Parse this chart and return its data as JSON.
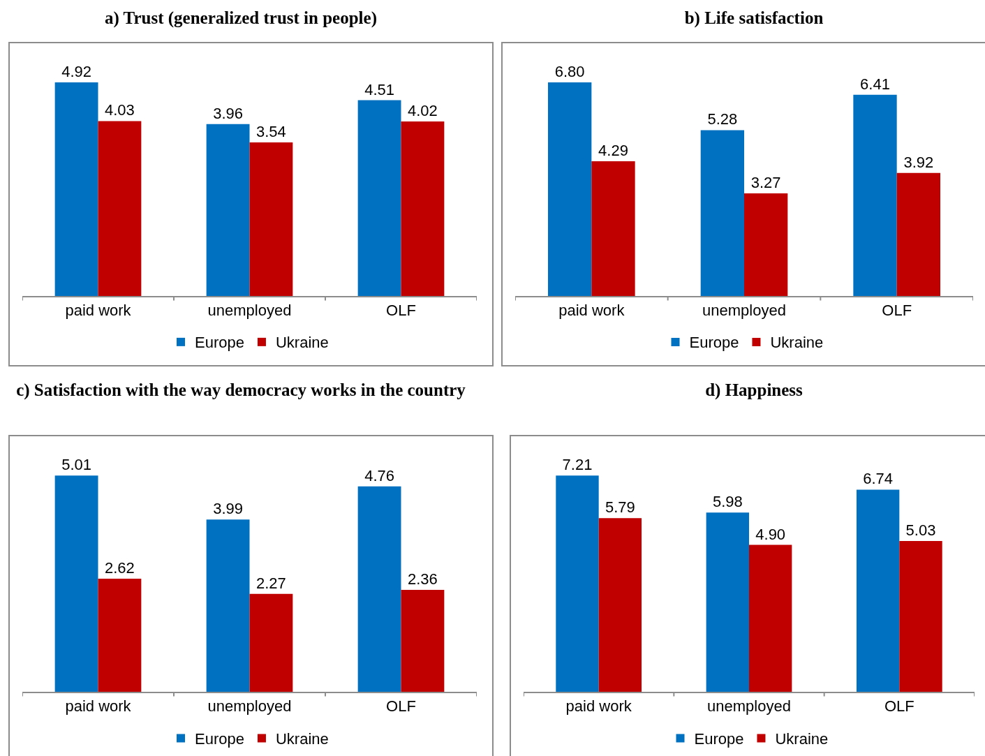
{
  "chart_data": [
    {
      "type": "bar",
      "title": "a) Trust (generalized trust in people)",
      "categories": [
        "paid work",
        "unemployed",
        "OLF"
      ],
      "tick_labels": "x",
      "grid": false,
      "legend": "bottom",
      "series": [
        {
          "name": "Europe",
          "color": "#0070c0",
          "values": [
            4.92,
            3.96,
            4.51
          ],
          "value_labels": [
            "4.92",
            "3.96",
            "4.51"
          ]
        },
        {
          "name": "Ukraine",
          "color": "#c00000",
          "values": [
            4.03,
            3.54,
            4.02
          ],
          "value_labels": [
            "4.03",
            "3.54",
            "4.02"
          ]
        }
      ]
    },
    {
      "type": "bar",
      "title": "b) Life satisfaction",
      "categories": [
        "paid work",
        "unemployed",
        "OLF"
      ],
      "tick_labels": "x",
      "grid": false,
      "legend": "bottom",
      "series": [
        {
          "name": "Europe",
          "color": "#0070c0",
          "values": [
            6.8,
            5.28,
            6.41
          ],
          "value_labels": [
            "6.80",
            "5.28",
            "6.41"
          ]
        },
        {
          "name": "Ukraine",
          "color": "#c00000",
          "values": [
            4.29,
            3.27,
            3.92
          ],
          "value_labels": [
            "4.29",
            "3.27",
            "3.92"
          ]
        }
      ]
    },
    {
      "type": "bar",
      "title": "c) Satisfaction with the way democracy works in the country",
      "categories": [
        "paid work",
        "unemployed",
        "OLF"
      ],
      "tick_labels": "x",
      "grid": false,
      "legend": "bottom",
      "series": [
        {
          "name": "Europe",
          "color": "#0070c0",
          "values": [
            5.01,
            3.99,
            4.76
          ],
          "value_labels": [
            "5.01",
            "3.99",
            "4.76"
          ]
        },
        {
          "name": "Ukraine",
          "color": "#c00000",
          "values": [
            2.62,
            2.27,
            2.36
          ],
          "value_labels": [
            "2.62",
            "2.27",
            "2.36"
          ]
        }
      ]
    },
    {
      "type": "bar",
      "title": "d) Happiness",
      "categories": [
        "paid work",
        "unemployed",
        "OLF"
      ],
      "tick_labels": "x",
      "grid": false,
      "legend": "bottom",
      "series": [
        {
          "name": "Europe",
          "color": "#0070c0",
          "values": [
            7.21,
            5.98,
            6.74
          ],
          "value_labels": [
            "7.21",
            "5.98",
            "6.74"
          ]
        },
        {
          "name": "Ukraine",
          "color": "#c00000",
          "values": [
            5.79,
            4.9,
            5.03
          ],
          "value_labels": [
            "5.79",
            "4.90",
            "5.03"
          ]
        }
      ]
    }
  ]
}
